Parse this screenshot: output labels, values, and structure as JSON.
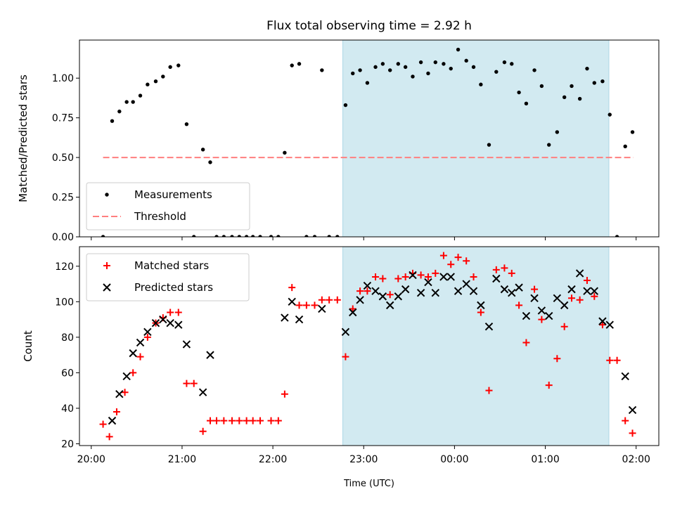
{
  "chart_data": {
    "type": "scatter",
    "title": "Flux total observing time = 2.92 h",
    "xlabel": "Time (UTC)",
    "x_unit": "hours (UTC, 24.0 = 00:00 next day)",
    "xlim": [
      19.87,
      26.25
    ],
    "xticks": [
      {
        "value": 20,
        "label": "20:00"
      },
      {
        "value": 21,
        "label": "21:00"
      },
      {
        "value": 22,
        "label": "22:00"
      },
      {
        "value": 23,
        "label": "23:00"
      },
      {
        "value": 24,
        "label": "00:00"
      },
      {
        "value": 25,
        "label": "01:00"
      },
      {
        "value": 26,
        "label": "02:00"
      }
    ],
    "shaded_region": {
      "x0": 22.77,
      "x1": 25.7,
      "color": "#add8e6"
    },
    "panels": [
      {
        "ylabel": "Matched/Predicted stars",
        "ylim": [
          0,
          1.24
        ],
        "yticks": [
          {
            "value": 0,
            "label": "0.00"
          },
          {
            "value": 0.25,
            "label": "0.25"
          },
          {
            "value": 0.5,
            "label": "0.50"
          },
          {
            "value": 0.75,
            "label": "0.75"
          },
          {
            "value": 1.0,
            "label": "1.00"
          }
        ],
        "legend": {
          "position": "lower-left"
        },
        "series": [
          {
            "name": "Measurements",
            "marker": "dot",
            "color": "#000000",
            "x": [
              20.13,
              20.23,
              20.31,
              20.39,
              20.46,
              20.54,
              20.62,
              20.71,
              20.79,
              20.87,
              20.96,
              21.05,
              21.13,
              21.23,
              21.31,
              21.38,
              21.46,
              21.55,
              21.63,
              21.71,
              21.78,
              21.86,
              21.98,
              22.06,
              22.13,
              22.21,
              22.29,
              22.37,
              22.46,
              22.54,
              22.62,
              22.71,
              22.8,
              22.88,
              22.96,
              23.04,
              23.13,
              23.21,
              23.29,
              23.38,
              23.46,
              23.54,
              23.63,
              23.71,
              23.79,
              23.88,
              23.96,
              24.04,
              24.13,
              24.21,
              24.29,
              24.38,
              24.46,
              24.55,
              24.63,
              24.71,
              24.79,
              24.88,
              24.96,
              25.04,
              25.13,
              25.21,
              25.29,
              25.38,
              25.46,
              25.54,
              25.63,
              25.71,
              25.79,
              25.88,
              25.96
            ],
            "y": [
              0.0,
              0.73,
              0.79,
              0.85,
              0.85,
              0.89,
              0.96,
              0.98,
              1.01,
              1.07,
              1.08,
              0.71,
              0.0,
              0.55,
              0.47,
              0.0,
              0.0,
              0.0,
              0.0,
              0.0,
              0.0,
              0.0,
              0.0,
              0.0,
              0.53,
              1.08,
              1.09,
              0.0,
              0.0,
              1.05,
              0.0,
              0.0,
              0.83,
              1.03,
              1.05,
              0.97,
              1.07,
              1.09,
              1.05,
              1.09,
              1.07,
              1.01,
              1.1,
              1.03,
              1.1,
              1.09,
              1.06,
              1.18,
              1.11,
              1.07,
              0.96,
              0.58,
              1.04,
              1.1,
              1.09,
              0.91,
              0.84,
              1.05,
              0.95,
              0.58,
              0.66,
              0.88,
              0.95,
              0.87,
              1.06,
              0.97,
              0.98,
              0.77,
              0.0,
              0.57,
              0.66
            ]
          },
          {
            "name": "Threshold",
            "marker": "dashed-line",
            "color": "#ff7f7f",
            "x": [
              20.13,
              25.97
            ],
            "y": [
              0.5,
              0.5
            ]
          }
        ]
      },
      {
        "ylabel": "Count",
        "ylim": [
          19,
          131
        ],
        "yticks": [
          {
            "value": 20,
            "label": "20"
          },
          {
            "value": 40,
            "label": "40"
          },
          {
            "value": 60,
            "label": "60"
          },
          {
            "value": 80,
            "label": "80"
          },
          {
            "value": 100,
            "label": "100"
          },
          {
            "value": 120,
            "label": "120"
          }
        ],
        "legend": {
          "position": "upper-left"
        },
        "series": [
          {
            "name": "Matched stars",
            "marker": "plus",
            "color": "#ff0000",
            "x": [
              20.13,
              20.2,
              20.28,
              20.37,
              20.46,
              20.54,
              20.62,
              20.71,
              20.79,
              20.87,
              20.96,
              21.05,
              21.13,
              21.23,
              21.31,
              21.38,
              21.46,
              21.55,
              21.63,
              21.71,
              21.78,
              21.86,
              21.98,
              22.06,
              22.13,
              22.21,
              22.29,
              22.37,
              22.46,
              22.54,
              22.62,
              22.71,
              22.8,
              22.88,
              22.96,
              23.04,
              23.13,
              23.21,
              23.29,
              23.38,
              23.46,
              23.54,
              23.63,
              23.71,
              23.79,
              23.88,
              23.96,
              24.04,
              24.13,
              24.21,
              24.29,
              24.38,
              24.46,
              24.55,
              24.63,
              24.71,
              24.79,
              24.88,
              24.96,
              25.04,
              25.13,
              25.21,
              25.29,
              25.38,
              25.46,
              25.54,
              25.63,
              25.71,
              25.79,
              25.88,
              25.96
            ],
            "y": [
              31,
              24,
              38,
              49,
              60,
              69,
              80,
              88,
              91,
              94,
              94,
              54,
              54,
              27,
              33,
              33,
              33,
              33,
              33,
              33,
              33,
              33,
              33,
              33,
              48,
              108,
              98,
              98,
              98,
              101,
              101,
              101,
              69,
              96,
              106,
              106,
              114,
              113,
              104,
              113,
              114,
              116,
              115,
              114,
              116,
              126,
              121,
              125,
              123,
              114,
              94,
              50,
              118,
              119,
              116,
              98,
              77,
              107,
              90,
              53,
              68,
              86,
              102,
              101,
              112,
              103,
              87,
              67,
              67,
              33,
              26
            ]
          },
          {
            "name": "Predicted stars",
            "marker": "x",
            "color": "#000000",
            "x": [
              20.23,
              20.31,
              20.39,
              20.46,
              20.54,
              20.62,
              20.71,
              20.79,
              20.87,
              20.96,
              21.05,
              21.23,
              21.31,
              22.13,
              22.21,
              22.29,
              22.54,
              22.8,
              22.88,
              22.96,
              23.04,
              23.13,
              23.21,
              23.29,
              23.38,
              23.46,
              23.54,
              23.63,
              23.71,
              23.79,
              23.88,
              23.96,
              24.04,
              24.13,
              24.21,
              24.29,
              24.38,
              24.46,
              24.55,
              24.63,
              24.71,
              24.79,
              24.88,
              24.96,
              25.04,
              25.13,
              25.21,
              25.29,
              25.38,
              25.46,
              25.54,
              25.63,
              25.71,
              25.88,
              25.96
            ],
            "y": [
              33,
              48,
              58,
              71,
              77,
              83,
              88,
              90,
              88,
              87,
              76,
              49,
              70,
              91,
              100,
              90,
              96,
              83,
              94,
              101,
              109,
              106,
              103,
              98,
              103,
              107,
              115,
              105,
              111,
              105,
              114,
              114,
              106,
              110,
              106,
              98,
              86,
              113,
              107,
              105,
              108,
              92,
              102,
              95,
              92,
              102,
              98,
              107,
              116,
              106,
              106,
              89,
              87,
              58,
              39
            ]
          }
        ]
      }
    ]
  }
}
